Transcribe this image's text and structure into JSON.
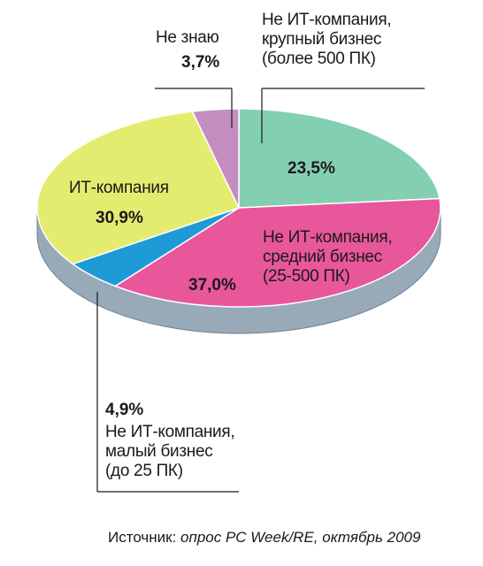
{
  "chart_data": {
    "type": "pie",
    "categories": [
      "Не ИТ-компания,\nкрупный бизнес\n(более 500 ПК)",
      "Не ИТ-компания,\nсредний бизнес\n(25-500 ПК)",
      "Не ИТ-компания,\nмалый бизнес\n(до 25 ПК)",
      "ИТ-компания",
      "Не знаю"
    ],
    "values": [
      23.5,
      37.0,
      4.9,
      30.9,
      3.7
    ],
    "value_labels": [
      "23,5%",
      "37,0%",
      "4,9%",
      "30,9%",
      "3,7%"
    ],
    "colors": [
      "#82cfb2",
      "#e9579b",
      "#1e9ad6",
      "#e4ec70",
      "#c38dc0"
    ],
    "source_label": "Источник:",
    "source": "опрос PC Week/RE, октябрь 2009"
  }
}
